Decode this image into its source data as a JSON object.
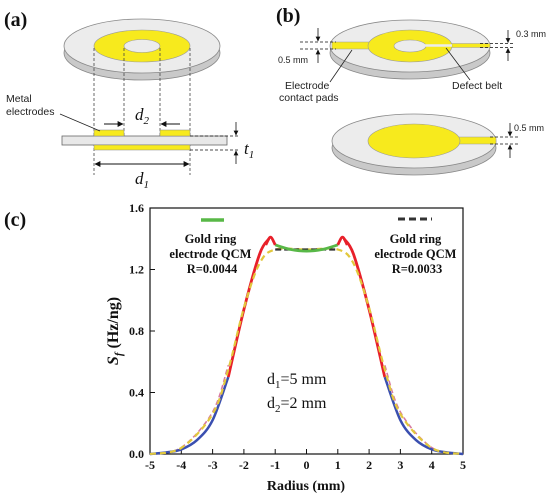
{
  "panels": {
    "a": {
      "label": "(a)",
      "metal_electrodes": [
        "Metal",
        "electrodes"
      ],
      "d2": {
        "main": "d",
        "sub": "2"
      },
      "d1": {
        "main": "d",
        "sub": "1"
      },
      "t1": {
        "main": "t",
        "sub": "1"
      }
    },
    "b": {
      "label": "(b)",
      "dim_left": "0.5 mm",
      "dim_right_top": "0.3 mm",
      "dim_right_bottom": "0.5 mm",
      "contact_pads": [
        "Electrode",
        "contact pads"
      ],
      "defect_belt": "Defect belt"
    },
    "c": {
      "label": "(c)"
    }
  },
  "colors": {
    "gold": "#f7ea1d",
    "disk_top": "#ececec",
    "disk_side": "#c9c9c9",
    "red_curve": "#e8202a",
    "blue_curve": "#3a4fb0",
    "green_curve": "#58b847",
    "dashed_curve": "#e2c83c",
    "black_dash": "#333333",
    "pink_dash": "#d77aa0"
  },
  "chart_data": {
    "type": "line",
    "ylabel": {
      "main": "S",
      "sub": "f",
      "unit": " (Hz/ng)"
    },
    "xlabel": "Radius (mm)",
    "xlim": [
      -5,
      5
    ],
    "ylim": [
      0,
      1.6
    ],
    "xticks": [
      "-5",
      "-4",
      "-3",
      "-2",
      "-1",
      "0",
      "1",
      "2",
      "3",
      "4",
      "5"
    ],
    "yticks": [
      "0.0",
      "0.4",
      "0.8",
      "1.2",
      "1.6"
    ],
    "legend_left": {
      "line1": "Gold ring",
      "line2": "electrode QCM",
      "line3": "R=0.0044"
    },
    "legend_right": {
      "line1": "Gold ring",
      "line2": "electrode QCM",
      "line3": "R=0.0033"
    },
    "annotation": {
      "l1_main": "d",
      "l1_sub": "1",
      "l1_rest": "=5 mm",
      "l2_main": "d",
      "l2_sub": "2",
      "l2_rest": "=2 mm"
    },
    "series": [
      {
        "role": "solid-ring",
        "x": [
          -1.0,
          -0.5,
          0.0,
          0.5,
          1.0
        ],
        "y": [
          1.36,
          1.33,
          1.32,
          1.33,
          1.36
        ]
      },
      {
        "role": "edge-flank",
        "x": [
          -5.0,
          -4.5,
          -4.0,
          -3.5,
          -3.0,
          -2.5,
          -2.0,
          -1.5,
          -1.2,
          1.2,
          1.5,
          2.0,
          2.5,
          3.0,
          3.5,
          4.0,
          4.5,
          5.0
        ],
        "y": [
          0.0,
          0.01,
          0.03,
          0.09,
          0.22,
          0.5,
          0.94,
          1.3,
          1.4,
          1.4,
          1.3,
          0.94,
          0.5,
          0.22,
          0.09,
          0.03,
          0.01,
          0.0
        ]
      },
      {
        "role": "dashed-ring",
        "x": [
          -5.0,
          -4.0,
          -3.0,
          -2.5,
          -2.0,
          -1.5,
          -1.0,
          0.0,
          1.0,
          1.5,
          2.0,
          2.5,
          3.0,
          4.0,
          5.0
        ],
        "y": [
          0.0,
          0.04,
          0.26,
          0.55,
          0.95,
          1.24,
          1.33,
          1.33,
          1.33,
          1.24,
          0.95,
          0.55,
          0.26,
          0.04,
          0.0
        ]
      }
    ]
  }
}
